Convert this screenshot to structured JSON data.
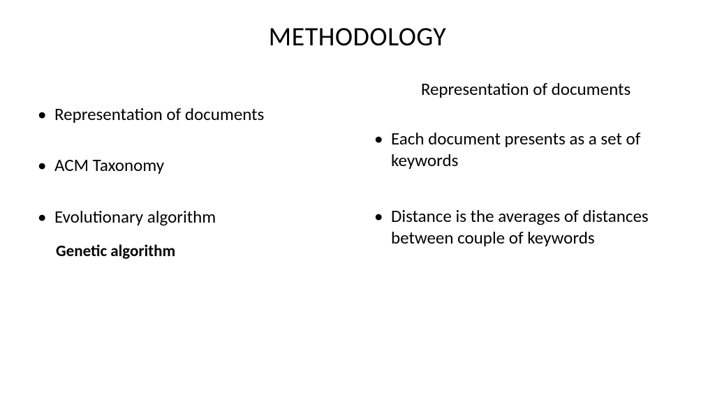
{
  "slide": {
    "title": "METHODOLOGY",
    "background_color": "#ffffff",
    "text_color": "#000000",
    "title_fontsize": 38,
    "body_fontsize": 25,
    "left": {
      "bullets": [
        "Representation of documents",
        "ACM Taxonomy",
        "Evolutionary algorithm"
      ],
      "sub_item": "Genetic algorithm"
    },
    "right": {
      "heading": "Representation of documents",
      "bullets": [
        "Each document presents as a set of keywords",
        "Distance  is the averages of distances between couple of keywords"
      ]
    }
  }
}
